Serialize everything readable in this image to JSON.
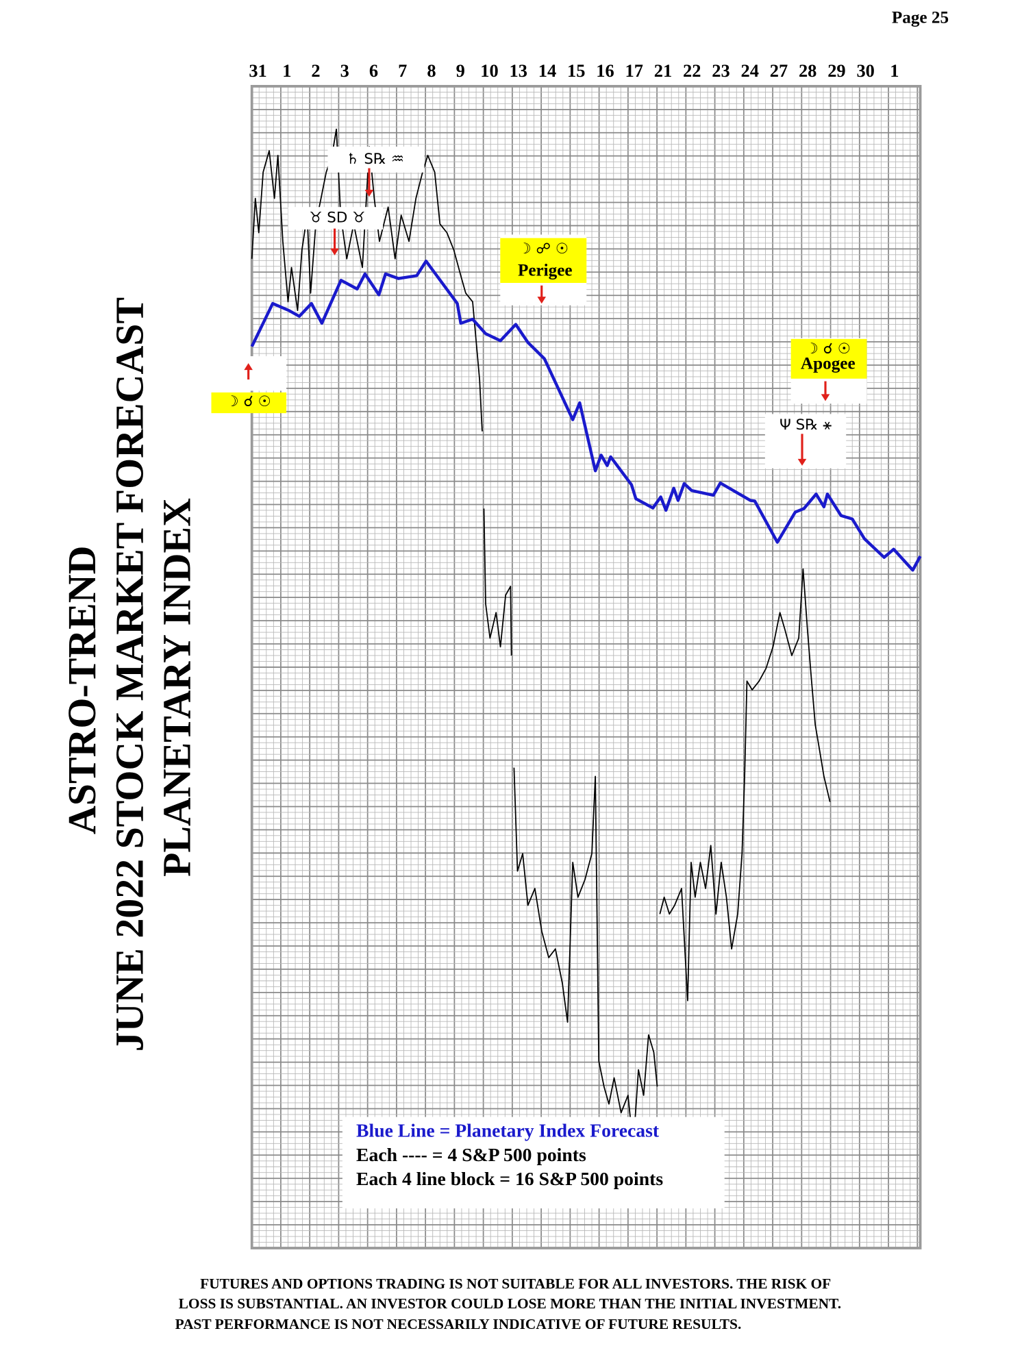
{
  "page": "Page  25",
  "disclaimer": [
    "FUTURES AND OPTIONS TRADING IS NOT SUITABLE FOR ALL INVESTORS.  THE RISK OF",
    "LOSS IS SUBSTANTIAL.  AN INVESTOR COULD LOSE MORE THAN THE INITIAL INVESTMENT.",
    "PAST PERFORMANCE IS NOT NECESSARILY INDICATIVE OF FUTURE RESULTS."
  ],
  "chart_data": {
    "type": "line",
    "title": [
      "ASTRO-TREND",
      "JUNE 2022  STOCK MARKET FORECAST",
      "PLANETARY INDEX"
    ],
    "categories": [
      "31",
      "1",
      "2",
      "3",
      "6",
      "7",
      "8",
      "9",
      "10",
      "13",
      "14",
      "15",
      "16",
      "17",
      "21",
      "22",
      "23",
      "24",
      "27",
      "28",
      "29",
      "30",
      "1"
    ],
    "xlim": [
      -0.21,
      22.89
    ],
    "ylim": [
      0,
      200
    ],
    "grid": true,
    "notes": [
      "Each ---- =   4 S&P 500 points",
      "Each 4 line block =  16  S&P 500 points"
    ],
    "annotations": [
      "☽ ☌ ☉",
      "♄ S℞ ♒",
      "♉ SD ♉",
      "☽ ☍ ☉",
      "Perigee",
      "☽ ☌ ☉",
      "Apogee",
      "Ψ S℞ ⚹"
    ],
    "series": [
      {
        "name": "Blue Line = Planetary Index Forecast",
        "color": "#1a1acc",
        "x": [
          -0.21,
          0.51,
          1.07,
          1.43,
          1.85,
          2.21,
          2.87,
          3.43,
          3.7,
          4.18,
          4.41,
          4.86,
          5.49,
          5.81,
          6.89,
          7.01,
          7.42,
          7.87,
          8.38,
          8.91,
          9.33,
          9.9,
          10.88,
          11.12,
          11.66,
          11.86,
          12.07,
          12.19,
          12.91,
          13.06,
          13.65,
          13.92,
          14.1,
          14.37,
          14.52,
          14.73,
          14.99,
          15.74,
          15.98,
          17.02,
          17.17,
          17.95,
          18.57,
          18.87,
          19.29,
          19.56,
          19.68,
          20.15,
          20.54,
          20.96,
          21.64,
          21.97,
          22.63,
          22.89
        ],
        "values": [
          155.2,
          162.6,
          161.4,
          160.4,
          162.6,
          159.2,
          166.6,
          165.1,
          167.7,
          164.1,
          167.7,
          166.9,
          167.4,
          169.9,
          162.6,
          159.2,
          159.9,
          157.4,
          156.2,
          159.0,
          155.9,
          153.1,
          142.6,
          145.5,
          133.8,
          136.5,
          134.7,
          136.2,
          131.4,
          129.0,
          127.4,
          129.3,
          127.0,
          130.8,
          128.7,
          131.6,
          130.4,
          129.6,
          131.7,
          128.7,
          128.6,
          121.5,
          126.7,
          127.3,
          129.8,
          127.6,
          129.8,
          126.1,
          125.5,
          122.1,
          118.9,
          120.3,
          116.7,
          119.1
        ]
      },
      {
        "color": "#000000",
        "x": [
          -0.21,
          -0.09,
          0.03,
          0.18,
          0.39,
          0.57,
          0.69,
          0.86,
          1.04,
          1.16,
          1.37,
          1.52,
          1.7,
          1.82,
          2.0,
          2.18,
          2.36,
          2.56,
          2.71,
          2.86,
          3.07,
          3.31,
          3.61,
          3.85,
          4.02,
          4.2,
          4.5,
          4.74,
          4.95,
          5.22,
          5.46,
          5.69,
          5.87,
          6.11,
          6.29,
          6.53,
          6.77,
          7.01,
          7.18,
          7.42,
          7.66,
          7.75,
          null,
          7.81,
          7.87,
          8.02,
          8.23,
          8.38,
          8.56,
          8.73,
          8.76,
          null,
          8.85,
          8.97,
          9.15,
          9.33,
          9.57,
          9.81,
          10.05,
          10.28,
          10.52,
          10.7,
          10.88,
          11.06,
          11.3,
          11.54,
          11.66,
          11.78,
          11.96,
          12.13,
          12.31,
          12.55,
          12.79,
          12.97,
          13.15,
          13.33,
          13.5,
          13.68,
          13.8,
          null,
          13.89,
          14.04,
          14.22,
          14.4,
          14.64,
          14.85,
          14.97,
          15.11,
          15.29,
          15.47,
          15.65,
          15.83,
          16.01,
          16.19,
          16.37,
          16.58,
          16.73,
          16.82,
          16.9,
          17.08,
          17.32,
          17.56,
          17.8,
          18.04,
          18.21,
          18.45,
          18.69,
          18.84,
          18.99,
          19.11,
          19.26,
          19.41,
          19.56,
          19.77
        ],
        "values": [
          170.3,
          180.7,
          174.8,
          185.2,
          188.9,
          180.7,
          188.1,
          173.3,
          162.9,
          168.8,
          161.4,
          171.8,
          177.8,
          164.4,
          176.3,
          180.7,
          185.2,
          188.1,
          192.6,
          177.8,
          170.3,
          176.3,
          168.8,
          189.6,
          180.7,
          173.3,
          179.2,
          170.3,
          177.8,
          173.3,
          180.7,
          185.2,
          188.1,
          185.2,
          176.3,
          174.8,
          171.8,
          167.4,
          164.4,
          162.9,
          149.5,
          140.6,
          null,
          127.3,
          110.9,
          105.0,
          109.4,
          103.5,
          112.4,
          113.9,
          102.0,
          null,
          82.7,
          64.9,
          67.9,
          59.0,
          61.9,
          54.5,
          50.0,
          51.5,
          45.6,
          38.9,
          66.4,
          60.4,
          63.4,
          67.9,
          81.2,
          32.2,
          27.8,
          24.8,
          29.3,
          23.3,
          26.3,
          17.4,
          30.7,
          26.3,
          36.7,
          33.7,
          27.8,
          null,
          57.5,
          60.4,
          57.5,
          59.0,
          61.9,
          42.6,
          66.4,
          60.4,
          66.4,
          61.9,
          69.3,
          57.5,
          66.4,
          60.4,
          51.5,
          57.5,
          67.9,
          81.2,
          97.6,
          96.1,
          97.6,
          99.8,
          103.5,
          109.4,
          106.5,
          102.0,
          105.0,
          116.9,
          106.5,
          99.0,
          90.1,
          85.7,
          81.2,
          76.8
        ]
      }
    ]
  }
}
